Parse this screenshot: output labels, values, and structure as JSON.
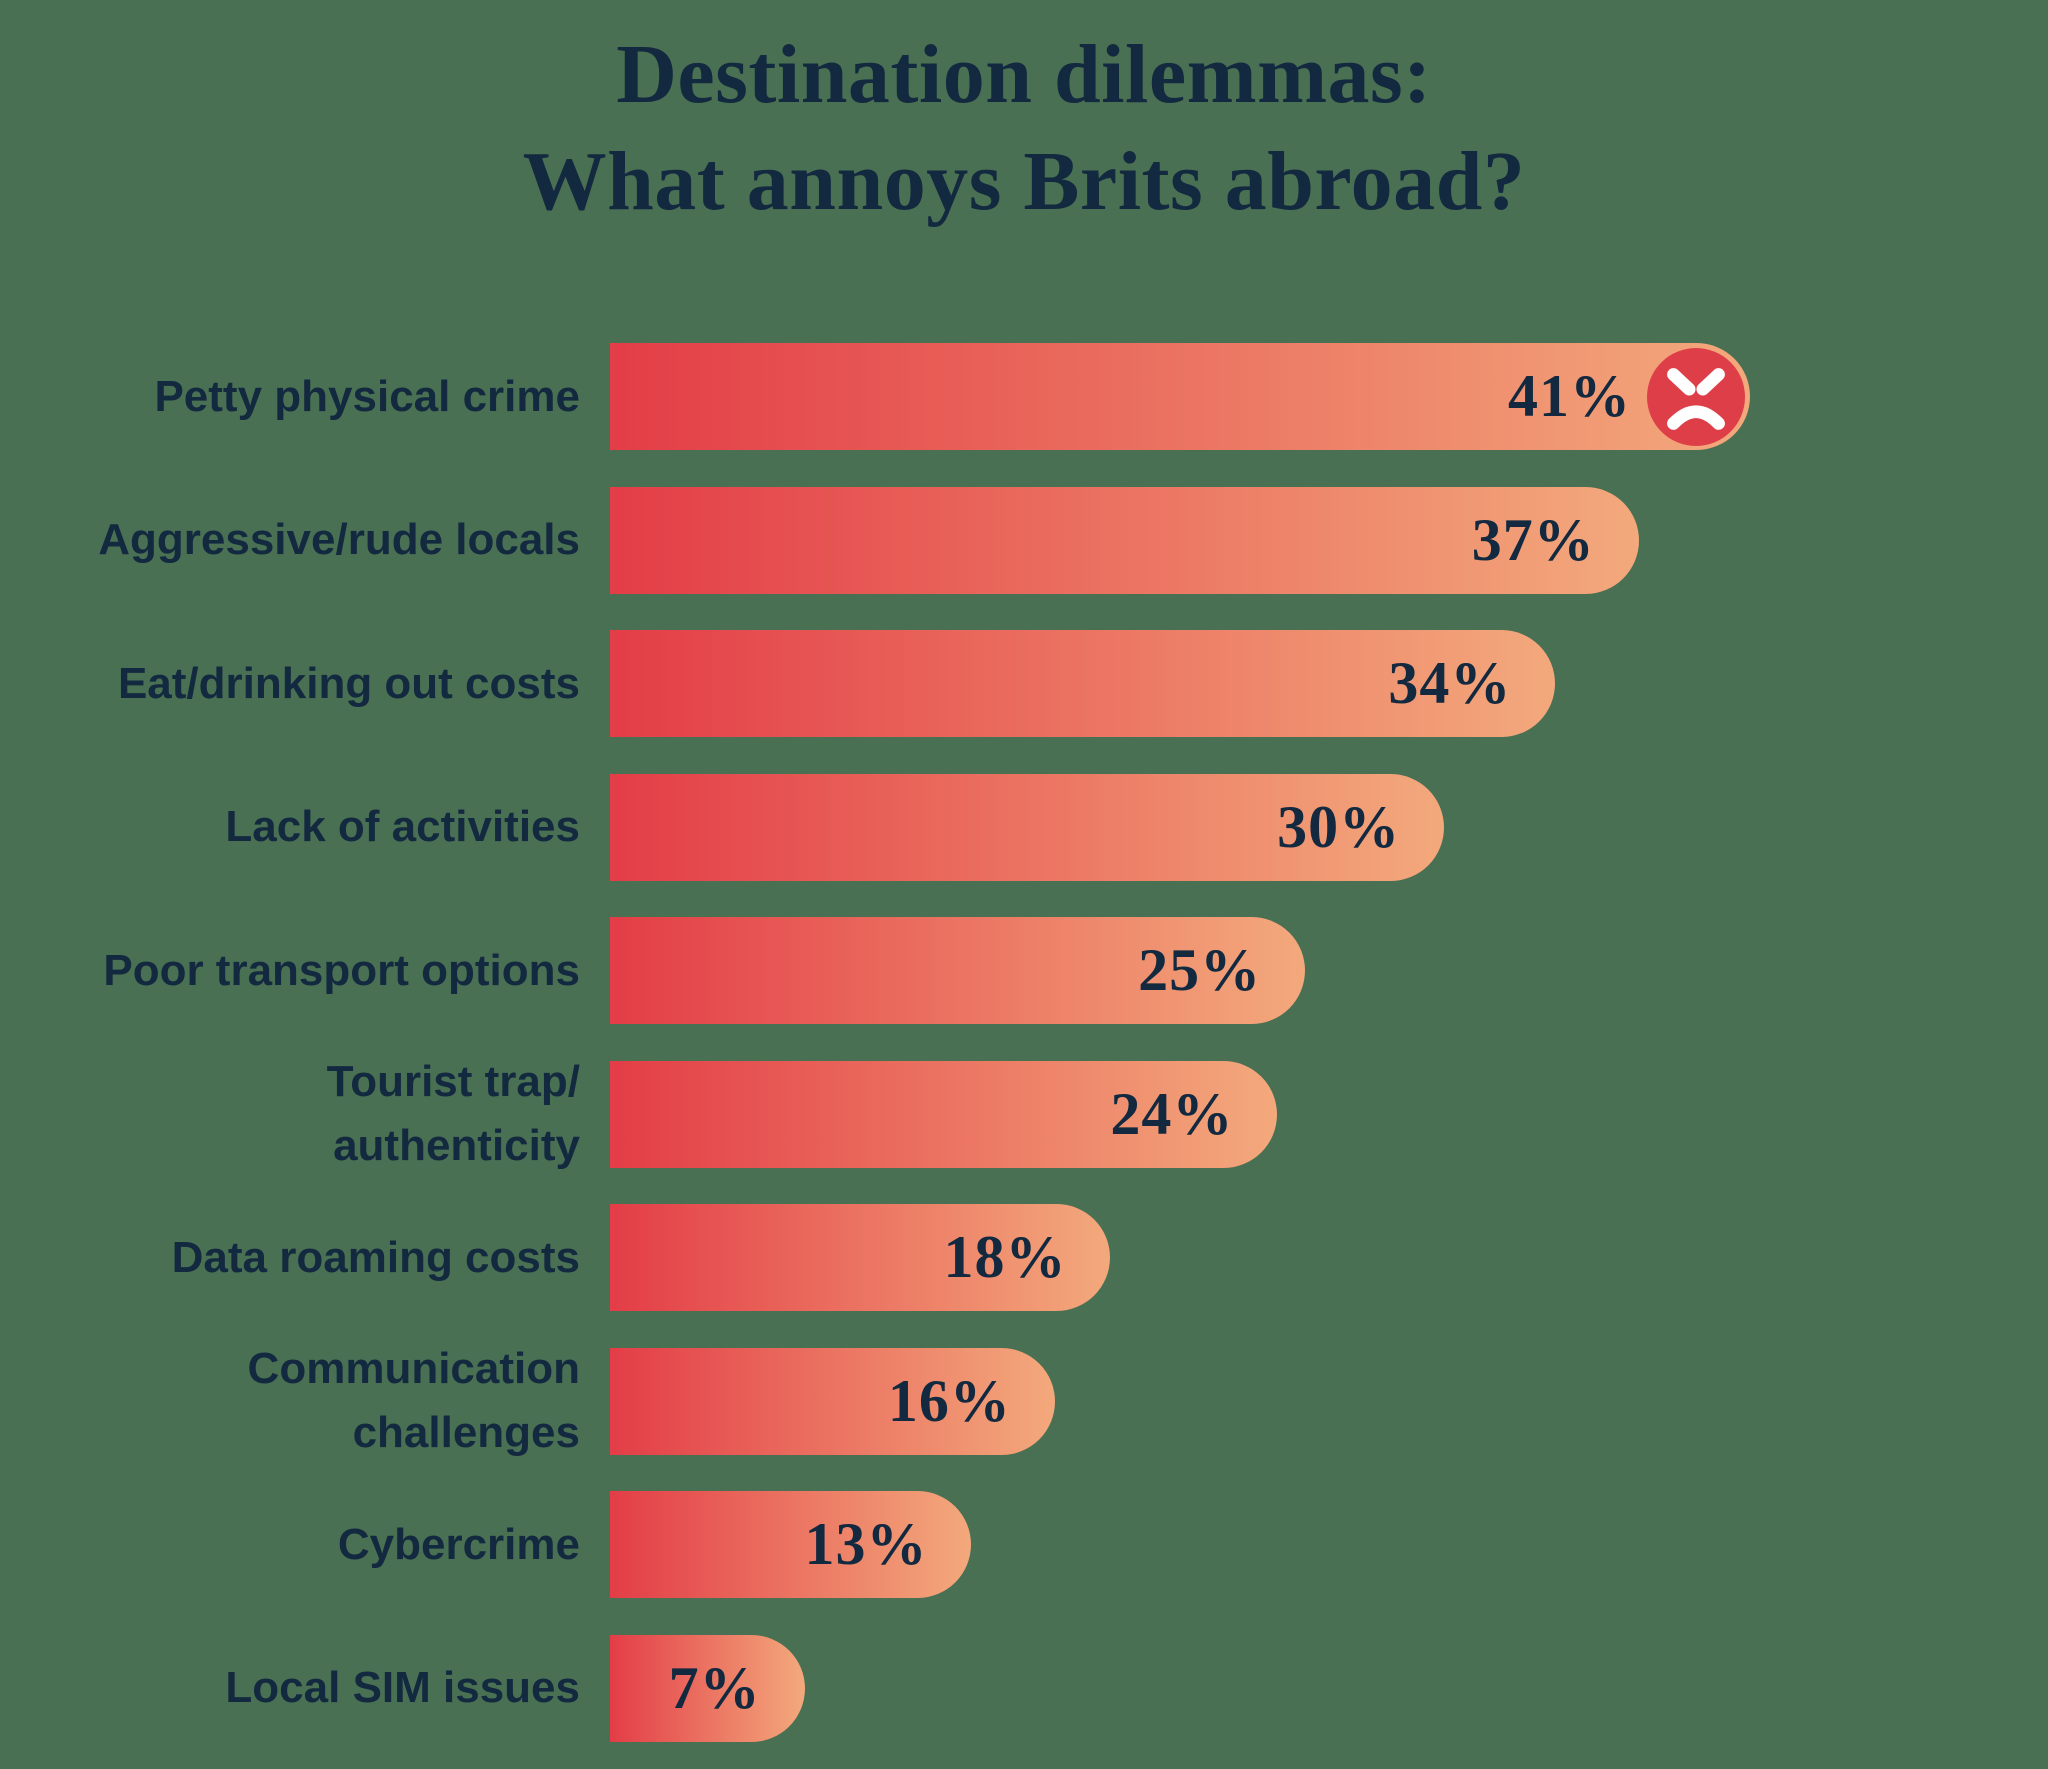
{
  "title": {
    "line1": "Destination dilemmas:",
    "line2": "What annoys Brits abroad?"
  },
  "colors": {
    "bg": "#4a7053",
    "navy": "#13293f",
    "barStart": "#e33d47",
    "barEnd": "#f3a97c",
    "iconCircle": "#de3e47",
    "iconFace": "#ffffff"
  },
  "chart_data": {
    "type": "bar",
    "orientation": "horizontal",
    "title": "Destination dilemmas: What annoys Brits abroad?",
    "unit": "%",
    "value_range": [
      0,
      41
    ],
    "grid": false,
    "legend": false,
    "value_labels": "inside-end",
    "categories": [
      "Petty physical crime",
      "Aggressive/rude locals",
      "Eat/drinking out costs",
      "Lack of activities",
      "Poor transport options",
      "Tourist trap/authenticity",
      "Data roaming costs",
      "Communication challenges",
      "Cybercrime",
      "Local SIM issues"
    ],
    "values": [
      41,
      37,
      34,
      30,
      25,
      24,
      18,
      16,
      13,
      7
    ],
    "rows": [
      {
        "label_lines": [
          "Petty physical crime"
        ],
        "value": 41,
        "display": "41%",
        "icon": "angry-face-icon"
      },
      {
        "label_lines": [
          "Aggressive/rude locals"
        ],
        "value": 37,
        "display": "37%"
      },
      {
        "label_lines": [
          "Eat/drinking out costs"
        ],
        "value": 34,
        "display": "34%"
      },
      {
        "label_lines": [
          "Lack of activities"
        ],
        "value": 30,
        "display": "30%"
      },
      {
        "label_lines": [
          "Poor transport options"
        ],
        "value": 25,
        "display": "25%"
      },
      {
        "label_lines": [
          "Tourist trap/",
          "authenticity"
        ],
        "value": 24,
        "display": "24%"
      },
      {
        "label_lines": [
          "Data roaming costs"
        ],
        "value": 18,
        "display": "18%"
      },
      {
        "label_lines": [
          "Communication",
          "challenges"
        ],
        "value": 16,
        "display": "16%"
      },
      {
        "label_lines": [
          "Cybercrime"
        ],
        "value": 13,
        "display": "13%"
      },
      {
        "label_lines": [
          "Local SIM issues"
        ],
        "value": 7,
        "display": "7%"
      }
    ]
  }
}
